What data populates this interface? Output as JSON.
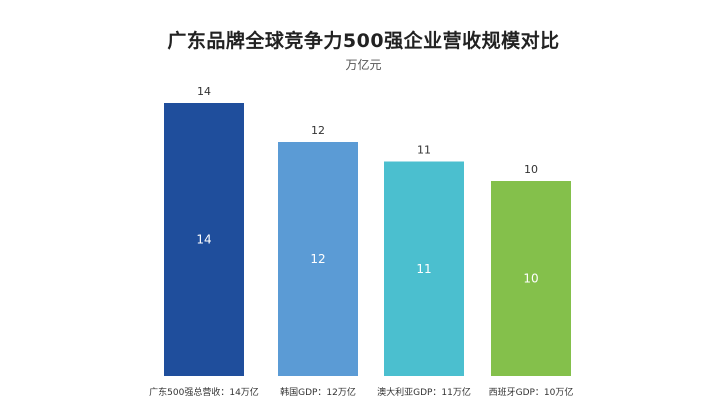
{
  "chart_data": {
    "type": "bar",
    "title": "广东品牌全球竞争力500强企业营收规模对比",
    "subtitle": "万亿元",
    "categories": [
      "广东500强总营收：14万亿",
      "韩国GDP：12万亿",
      "澳大利亚GDP：11万亿",
      "西班牙GDP：10万亿"
    ],
    "values": [
      14,
      12,
      11,
      10
    ],
    "colors": [
      "#1f4e9c",
      "#5b9bd5",
      "#4bbfcf",
      "#84c04b"
    ],
    "ylim": [
      0,
      14
    ],
    "grid": false,
    "legend": "none"
  }
}
